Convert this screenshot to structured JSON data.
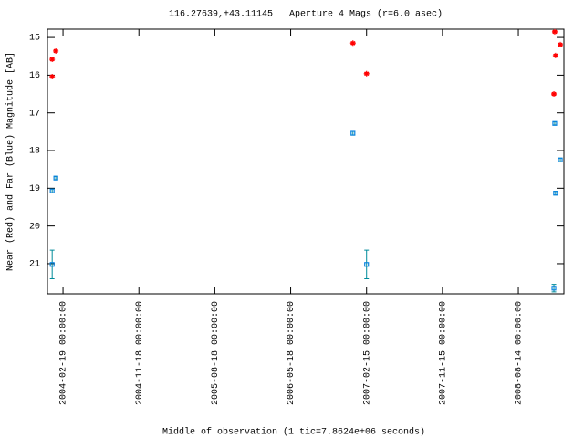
{
  "chart_data": {
    "type": "scatter",
    "title": "116.27639,+43.11145   Aperture 4 Mags (r=6.0 asec)",
    "x_label": "Middle of observation (1 tic=7.8624e+06 seconds)",
    "y_label": "Near (Red) and Far (Blue) Magnitude [AB]",
    "xlim": [
      "2003-12-25",
      "2009-01-25"
    ],
    "xticks": [
      {
        "value": "2004-02-19",
        "label": "2004-02-19 00:00:00"
      },
      {
        "value": "2004-11-18",
        "label": "2004-11-18 00:00:00"
      },
      {
        "value": "2005-08-18",
        "label": "2005-08-18 00:00:00"
      },
      {
        "value": "2006-05-18",
        "label": "2006-05-18 00:00:00"
      },
      {
        "value": "2007-02-15",
        "label": "2007-02-15 00:00:00"
      },
      {
        "value": "2007-11-15",
        "label": "2007-11-15 00:00:00"
      },
      {
        "value": "2008-08-14",
        "label": "2008-08-14 00:00:00"
      }
    ],
    "ylim": [
      21.8,
      14.78
    ],
    "yticks": [
      15,
      16,
      17,
      18,
      19,
      20,
      21
    ],
    "series": [
      {
        "color": "#ff0000",
        "marker": "star",
        "x": [
          "2004-01-11",
          "2004-01-11",
          "2004-01-24",
          "2006-12-28",
          "2007-02-15",
          "2008-12-23",
          "2009-01-12",
          "2008-12-26",
          "2008-12-20"
        ],
        "values": [
          15.58,
          16.04,
          15.36,
          15.15,
          15.96,
          14.85,
          15.19,
          15.48,
          16.5
        ],
        "errors": [
          0.03,
          0.03,
          0.03,
          0.03,
          0.03,
          0.03,
          0.03,
          0.03,
          0.03
        ]
      },
      {
        "color": "#0a84e0",
        "marker": "box",
        "x": [
          "2004-01-11",
          "2004-01-24",
          "2004-01-11",
          "2006-12-28",
          "2007-02-15",
          "2008-12-23",
          "2009-01-12",
          "2008-12-26",
          "2008-12-20"
        ],
        "values": [
          19.07,
          18.73,
          21.02,
          17.54,
          21.02,
          17.28,
          18.25,
          19.13,
          21.65
        ],
        "errors": [
          0.05,
          0.04,
          0.38,
          0.05,
          0.38,
          0.04,
          0.05,
          0.05,
          0.1
        ]
      }
    ]
  }
}
